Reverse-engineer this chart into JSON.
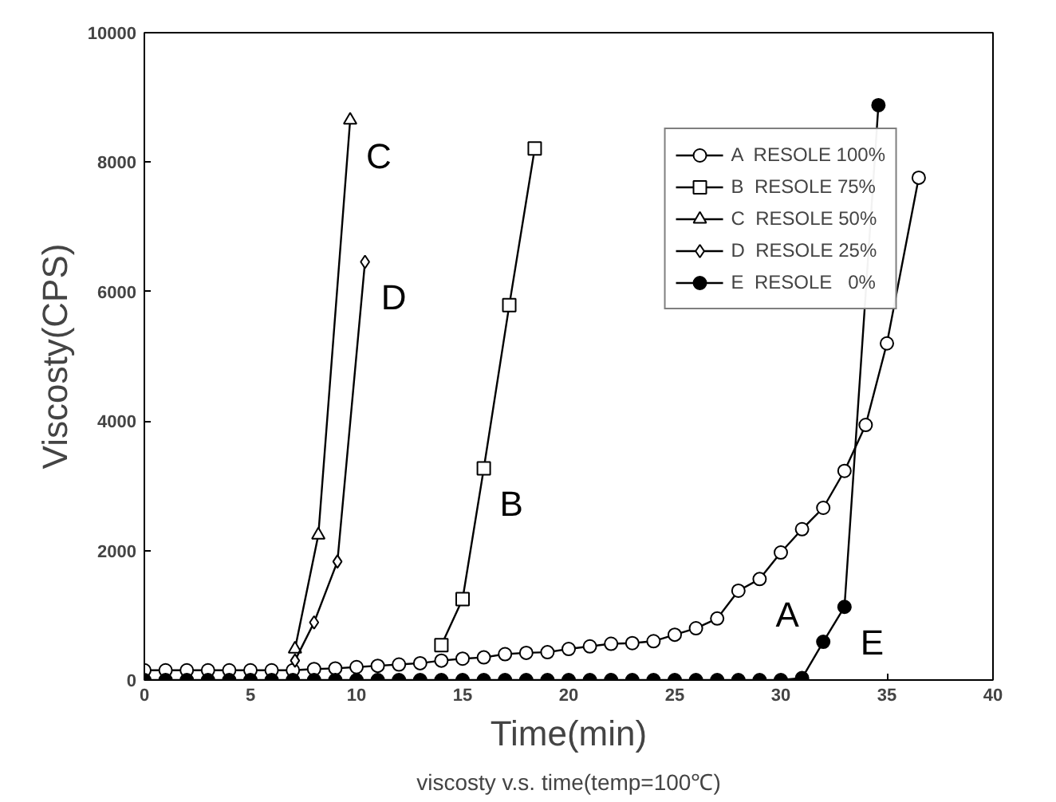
{
  "chart_data": {
    "type": "line",
    "xlabel": "Time(min)",
    "ylabel": "Viscosty(CPS)",
    "xlim": [
      0,
      40
    ],
    "ylim": [
      0,
      10000
    ],
    "xticks": [
      0,
      5,
      10,
      15,
      20,
      25,
      30,
      35,
      40
    ],
    "yticks": [
      0,
      2000,
      4000,
      6000,
      8000,
      10000
    ],
    "grid": false,
    "legend": "top right",
    "line_style": "solid",
    "series": [
      {
        "name": "A  RESOLE 100%",
        "color": "#ffffff",
        "marker": "circle",
        "x": [
          0,
          1,
          2,
          3,
          4,
          5,
          6,
          7,
          8,
          9,
          10,
          11,
          12,
          13,
          14,
          15,
          16,
          17,
          18,
          19,
          20,
          21,
          22,
          23,
          24,
          25,
          26,
          27,
          28,
          29,
          30,
          31,
          32,
          33,
          34,
          35,
          36.5
        ],
        "values": [
          150,
          150,
          150,
          150,
          150,
          150,
          150,
          150,
          170,
          180,
          200,
          220,
          240,
          260,
          300,
          330,
          350,
          400,
          420,
          430,
          480,
          520,
          560,
          570,
          600,
          700,
          800,
          950,
          1380,
          1560,
          1970,
          2330,
          2660,
          3230,
          3940,
          5200,
          7760
        ]
      },
      {
        "name": "B  RESOLE 75%",
        "color": "#ffffff",
        "marker": "square",
        "x": [
          14,
          15,
          16,
          17.2,
          18.4
        ],
        "values": [
          540,
          1250,
          3270,
          5790,
          8210
        ]
      },
      {
        "name": "C  RESOLE 50%",
        "color": "#ffffff",
        "marker": "triangle",
        "x": [
          7.1,
          8.2,
          9.7
        ],
        "values": [
          480,
          2240,
          8650
        ]
      },
      {
        "name": "D  RESOLE 25%",
        "color": "#ffffff",
        "marker": "diamond",
        "x": [
          7.1,
          8,
          9.1,
          10.4
        ],
        "values": [
          300,
          890,
          1830,
          6460
        ]
      },
      {
        "name": "E  RESOLE   0%",
        "color": "#000000",
        "marker": "circle",
        "x": [
          0,
          1,
          2,
          3,
          4,
          5,
          6,
          7,
          8,
          9,
          10,
          11,
          12,
          13,
          14,
          15,
          16,
          17,
          18,
          19,
          20,
          21,
          22,
          23,
          24,
          25,
          26,
          27,
          28,
          29,
          30,
          31,
          32,
          33,
          34.6
        ],
        "values": [
          0,
          0,
          0,
          0,
          0,
          0,
          0,
          0,
          0,
          0,
          0,
          0,
          0,
          0,
          0,
          0,
          0,
          0,
          0,
          0,
          0,
          0,
          0,
          0,
          0,
          0,
          0,
          0,
          0,
          0,
          0,
          30,
          590,
          1130,
          8880
        ]
      }
    ],
    "annotations": [
      {
        "text": "A",
        "x": 29,
        "y": 1560
      },
      {
        "text": "B",
        "x": 16,
        "y": 3270
      },
      {
        "text": "C",
        "x": 9.7,
        "y": 8650
      },
      {
        "text": "D",
        "x": 10.4,
        "y": 6460
      },
      {
        "text": "E",
        "x": 33,
        "y": 1130
      },
      "viscosty v.s. time(temp=100℃)"
    ]
  }
}
